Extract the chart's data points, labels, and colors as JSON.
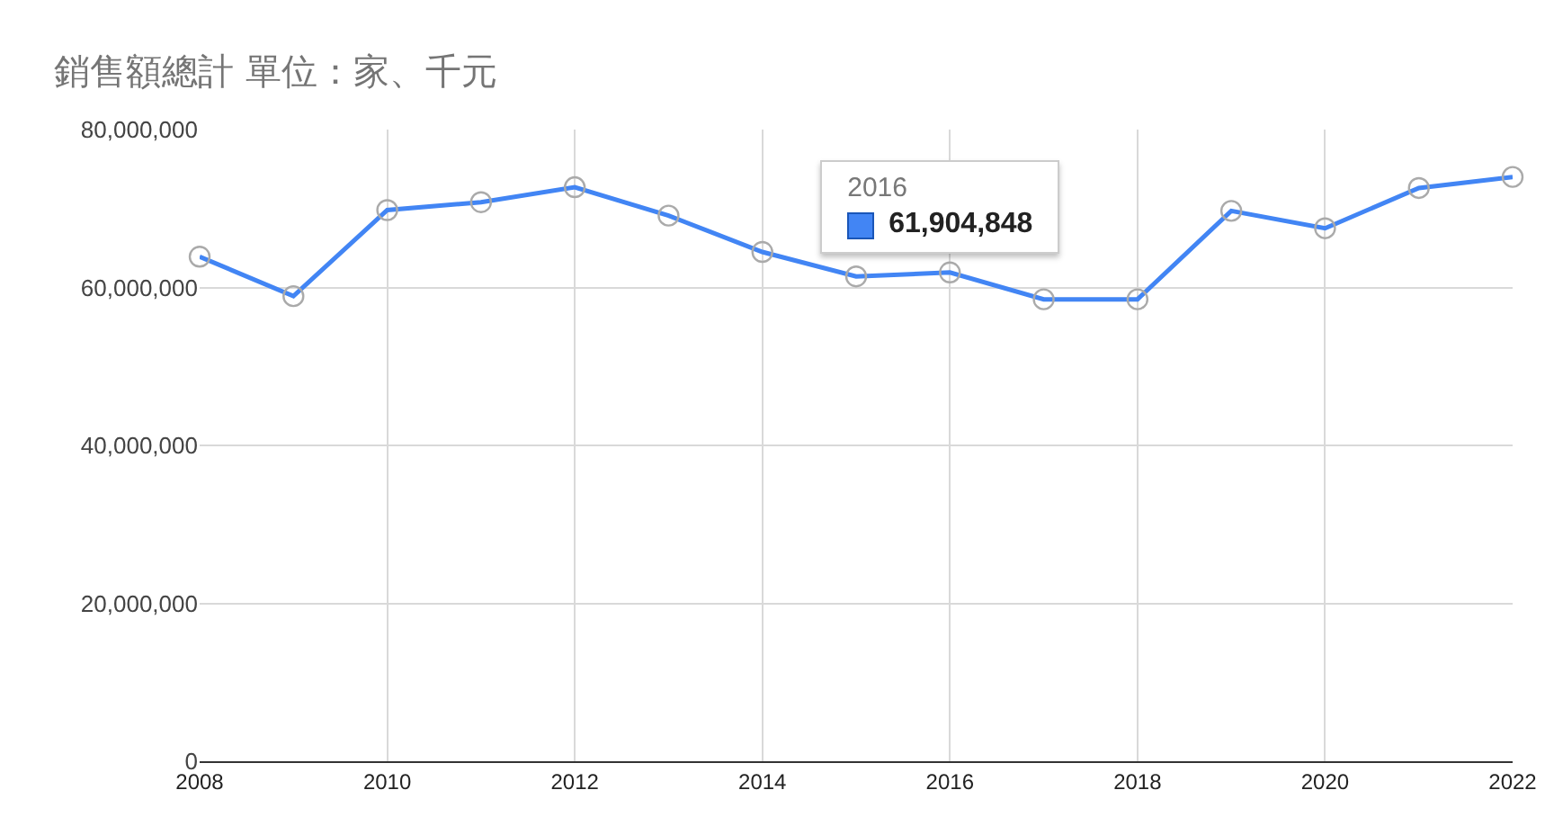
{
  "chart_data": {
    "type": "line",
    "title": "銷售額總計 單位：家、千元",
    "x": [
      2008,
      2009,
      2010,
      2011,
      2012,
      2013,
      2014,
      2015,
      2016,
      2017,
      2018,
      2019,
      2020,
      2021,
      2022
    ],
    "series": [
      {
        "color": "#4285f4",
        "values": [
          63900000,
          58900000,
          69800000,
          70800000,
          72700000,
          69100000,
          64500000,
          61400000,
          61904848,
          58500000,
          58500000,
          69700000,
          67500000,
          72600000,
          74000000
        ]
      }
    ],
    "xlim": [
      2008,
      2022
    ],
    "xticks": [
      2008,
      2010,
      2012,
      2014,
      2016,
      2018,
      2020,
      2022
    ],
    "ylim": [
      0,
      80000000
    ],
    "yticks": [
      {
        "value": 0,
        "label": "0"
      },
      {
        "value": 20000000,
        "label": "20,000,000"
      },
      {
        "value": 40000000,
        "label": "40,000,000"
      },
      {
        "value": 60000000,
        "label": "60,000,000"
      },
      {
        "value": 80000000,
        "label": "80,000,000"
      }
    ],
    "grid": true,
    "marker": "circle",
    "line_style": "solid",
    "annotations": [
      {
        "text": "2016",
        "x": 2016,
        "y": 61904848
      },
      "61,904,848"
    ]
  }
}
